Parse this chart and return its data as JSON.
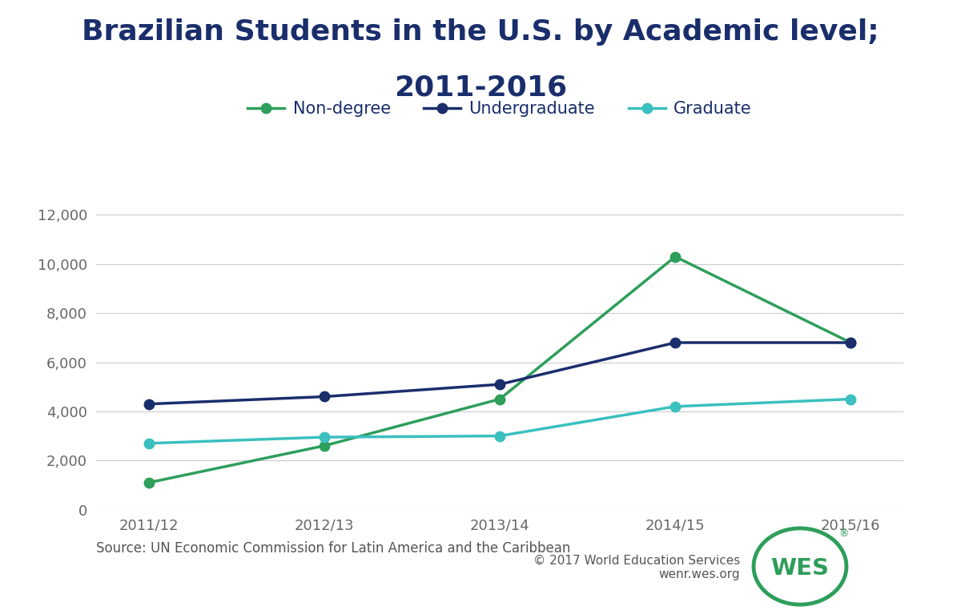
{
  "title_line1": "Brazilian Students in the U.S. by Academic level;",
  "title_line2": "2011-2016",
  "title_color": "#1a2e6c",
  "title_fontsize": 26,
  "background_color": "#ffffff",
  "years": [
    "2011/12",
    "2012/13",
    "2013/14",
    "2014/15",
    "2015/16"
  ],
  "series": {
    "Non-degree": {
      "values": [
        1100,
        2600,
        4500,
        10300,
        6800
      ],
      "color": "#2e9e5b",
      "marker": "o",
      "linewidth": 2.5,
      "markersize": 9,
      "zorder": 3
    },
    "Undergraduate": {
      "values": [
        4300,
        4600,
        5100,
        6800,
        6800
      ],
      "color": "#1a2e6c",
      "marker": "o",
      "linewidth": 2.5,
      "markersize": 9,
      "zorder": 3
    },
    "Graduate": {
      "values": [
        2700,
        2950,
        3000,
        4200,
        4500
      ],
      "color": "#3bbfbf",
      "marker": "o",
      "linewidth": 2.5,
      "markersize": 9,
      "zorder": 3
    }
  },
  "ylim": [
    0,
    12500
  ],
  "yticks": [
    0,
    2000,
    4000,
    6000,
    8000,
    10000,
    12000
  ],
  "ytick_labels": [
    "0",
    "2,000",
    "4,000",
    "6,000",
    "8,000",
    "10,000",
    "12,000"
  ],
  "grid_color": "#cccccc",
  "tick_color": "#666666",
  "tick_fontsize": 13,
  "legend_fontsize": 15,
  "source_text": "Source: UN Economic Commission for Latin America and the Caribbean",
  "source_fontsize": 12,
  "source_color": "#555555",
  "copyright_text": "© 2017 World Education Services\nwenr.wes.org",
  "copyright_fontsize": 11,
  "copyright_color": "#555555",
  "wes_circle_color": "#2e9e5b"
}
